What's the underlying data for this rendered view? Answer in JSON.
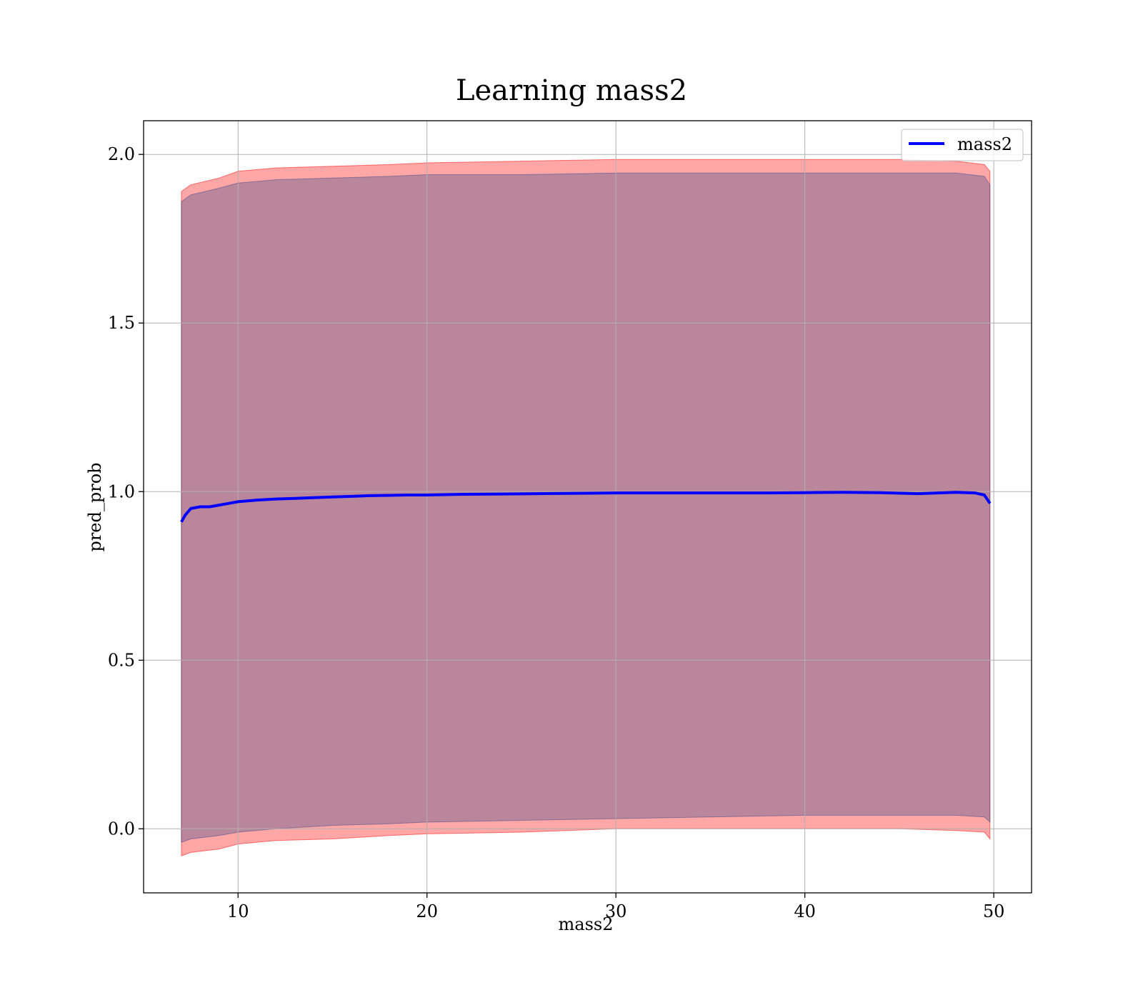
{
  "chart_data": {
    "type": "line",
    "title": "Learning mass2",
    "xlabel": "mass2",
    "ylabel": "pred_prob",
    "xlim": [
      5.0,
      52.0
    ],
    "ylim": [
      -0.19,
      2.1
    ],
    "x_ticks": [
      10,
      20,
      30,
      40,
      50
    ],
    "y_ticks": [
      0.0,
      0.5,
      1.0,
      1.5,
      2.0
    ],
    "x_tick_labels": [
      "10",
      "20",
      "30",
      "40",
      "50"
    ],
    "y_tick_labels": [
      "0.0",
      "0.5",
      "1.0",
      "1.5",
      "2.0"
    ],
    "grid": true,
    "legend_position": "top-right",
    "series": [
      {
        "name": "mass2",
        "color": "#0000ff",
        "x": [
          7.0,
          7.2,
          7.5,
          8.0,
          8.5,
          9.0,
          9.5,
          10.0,
          11.0,
          12.0,
          13.0,
          14.0,
          15.0,
          16.0,
          17.0,
          18.0,
          19.0,
          20.0,
          22.0,
          24.0,
          26.0,
          28.0,
          30.0,
          32.0,
          34.0,
          36.0,
          38.0,
          40.0,
          42.0,
          44.0,
          46.0,
          48.0,
          49.0,
          49.5,
          49.8
        ],
        "y": [
          0.91,
          0.93,
          0.95,
          0.955,
          0.955,
          0.96,
          0.965,
          0.97,
          0.975,
          0.978,
          0.98,
          0.982,
          0.984,
          0.986,
          0.988,
          0.989,
          0.99,
          0.99,
          0.992,
          0.993,
          0.994,
          0.995,
          0.996,
          0.996,
          0.996,
          0.996,
          0.996,
          0.997,
          0.998,
          0.997,
          0.994,
          0.998,
          0.996,
          0.99,
          0.965
        ]
      }
    ],
    "bands": [
      {
        "color": "#ff0000",
        "opacity": 0.35,
        "x": [
          7.0,
          7.5,
          9.0,
          10.0,
          12.0,
          15.0,
          18.0,
          20.0,
          25.0,
          30.0,
          35.0,
          40.0,
          45.0,
          48.0,
          49.5,
          49.8
        ],
        "upper": [
          1.89,
          1.91,
          1.93,
          1.95,
          1.96,
          1.965,
          1.97,
          1.975,
          1.98,
          1.985,
          1.985,
          1.985,
          1.985,
          1.98,
          1.97,
          1.95
        ],
        "lower": [
          -0.08,
          -0.07,
          -0.06,
          -0.045,
          -0.035,
          -0.03,
          -0.02,
          -0.015,
          -0.01,
          0.0,
          0.0,
          0.0,
          0.0,
          -0.005,
          -0.01,
          -0.03
        ]
      },
      {
        "color": "#3a4a8a",
        "opacity": 0.35,
        "x": [
          7.0,
          7.5,
          9.0,
          10.0,
          12.0,
          15.0,
          18.0,
          20.0,
          25.0,
          30.0,
          35.0,
          40.0,
          45.0,
          48.0,
          49.5,
          49.8
        ],
        "upper": [
          1.86,
          1.88,
          1.9,
          1.915,
          1.925,
          1.93,
          1.935,
          1.94,
          1.94,
          1.945,
          1.945,
          1.945,
          1.945,
          1.945,
          1.935,
          1.91
        ],
        "lower": [
          -0.04,
          -0.03,
          -0.02,
          -0.01,
          0.0,
          0.01,
          0.015,
          0.02,
          0.025,
          0.03,
          0.035,
          0.04,
          0.04,
          0.04,
          0.035,
          0.02
        ]
      }
    ]
  }
}
